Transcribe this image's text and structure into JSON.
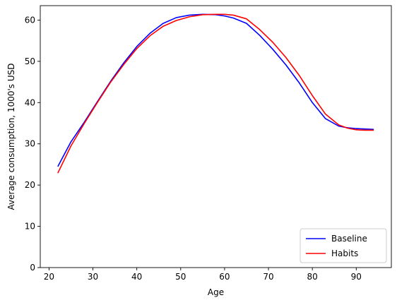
{
  "chart_data": {
    "type": "line",
    "xlabel": "Age",
    "ylabel": "Average consumption, 1000's USD",
    "xlim": [
      18,
      98
    ],
    "ylim": [
      0,
      63.5
    ],
    "xticks": [
      20,
      30,
      40,
      50,
      60,
      70,
      80,
      90
    ],
    "yticks": [
      0,
      10,
      20,
      30,
      40,
      50,
      60
    ],
    "grid": false,
    "legend_position": "lower-right",
    "series": [
      {
        "name": "Baseline",
        "color": "#0000ff",
        "x": [
          22,
          25,
          28,
          31,
          34,
          37,
          40,
          43,
          46,
          49,
          52,
          55,
          58,
          60,
          62,
          65,
          68,
          71,
          74,
          77,
          80,
          83,
          86,
          88,
          90,
          92,
          94
        ],
        "y": [
          24.5,
          30.5,
          35.2,
          40.2,
          45.1,
          49.6,
          53.6,
          56.8,
          59.2,
          60.6,
          61.2,
          61.4,
          61.3,
          61.0,
          60.5,
          59.2,
          56.3,
          52.9,
          49.1,
          44.8,
          40.0,
          36.1,
          34.3,
          33.9,
          33.7,
          33.6,
          33.5
        ]
      },
      {
        "name": "Habits",
        "color": "#ff0000",
        "x": [
          22,
          25,
          28,
          31,
          34,
          37,
          40,
          43,
          46,
          49,
          52,
          55,
          58,
          60,
          62,
          65,
          68,
          71,
          74,
          77,
          80,
          83,
          86,
          88,
          90,
          92,
          94
        ],
        "y": [
          22.9,
          29.5,
          34.9,
          40.0,
          44.9,
          49.2,
          53.1,
          56.2,
          58.5,
          59.9,
          60.8,
          61.3,
          61.4,
          61.4,
          61.2,
          60.3,
          57.7,
          54.6,
          50.9,
          46.6,
          41.7,
          37.2,
          34.6,
          33.8,
          33.4,
          33.3,
          33.3
        ]
      }
    ]
  }
}
